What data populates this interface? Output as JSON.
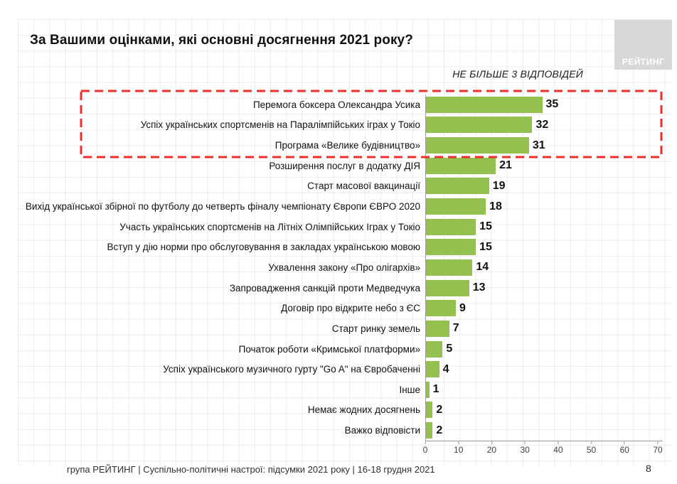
{
  "slide": {
    "title": "За Вашими оцінками, які основні досягнення 2021 року?",
    "note": "НЕ БІЛЬШЕ 3 ВІДПОВІДЕЙ",
    "logo_text": "РЕЙТИНГ",
    "footer": "група РЕЙТИНГ | Суспільно-політичні настрої: підсумки 2021 року | 16-18 грудня 2021",
    "page_number": "8"
  },
  "colors": {
    "bar": "#94c050",
    "highlight_box": "#ec2f2b",
    "logo_bg": "#d8d8d8",
    "axis": "#9a9a9a"
  },
  "chart_data": {
    "type": "bar",
    "orientation": "horizontal",
    "title": "За Вашими оцінками, які основні досягнення 2021 року?",
    "subtitle": "НЕ БІЛЬШЕ 3 ВІДПОВІДЕЙ",
    "xlabel": "",
    "ylabel": "",
    "xlim": [
      0,
      70
    ],
    "xticks": [
      0,
      10,
      20,
      30,
      40,
      50,
      60,
      70
    ],
    "grid": false,
    "legend": "none",
    "highlighted_top_n": 3,
    "categories": [
      "Перемога боксера Олександра Усика",
      "Успіх українських спортсменів на Паралімпійських іграх у Токіо",
      "Програма «Велике будівництво»",
      "Розширення послуг в додатку ДІЯ",
      "Старт масової вакцинації",
      "Вихід української збірної по футболу до четверть фіналу чемпіонату Європи ЄВРО 2020",
      "Участь українських спортсменів на Літніх Олімпійських Іграх у Токіо",
      "Вступ у дію норми про обслуговування в закладах українською мовою",
      "Ухвалення закону «Про олігархів»",
      "Запровадження санкцій проти Медведчука",
      "Договір про відкрите небо з ЄС",
      "Старт ринку земель",
      "Початок роботи «Кримської платформи»",
      "Успіх українського музичного гурту \"Go A\" на Євробаченні",
      "Інше",
      "Немає жодних досягнень",
      "Важко відповісти"
    ],
    "values": [
      35,
      32,
      31,
      21,
      19,
      18,
      15,
      15,
      14,
      13,
      9,
      7,
      5,
      4,
      1,
      2,
      2
    ]
  }
}
